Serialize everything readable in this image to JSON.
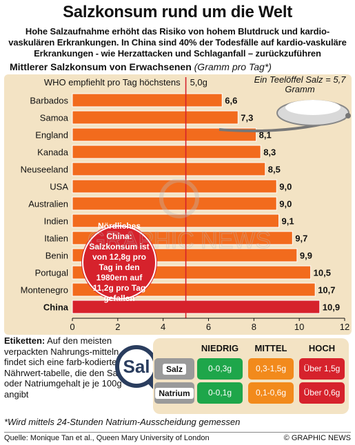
{
  "title": "Salzkonsum rund um die Welt",
  "subtitle": "Hohe Salzaufnahme erhöht das Risiko von hohem Blutdruck und kardio-vaskulären Erkrankungen. In China sind 40% der Todesfälle auf kardio-vaskuläre Erkrankungen - wie Herzattacken und Schlaganfall – zurückzuführen",
  "section_heading": "Mittlerer Salzkonsum von Erwachsenen",
  "section_unit": "(Gramm pro Tag*)",
  "spoon_note": "Ein Teelöffel Salz = 5,7 Gramm",
  "chart_data": {
    "type": "bar",
    "orientation": "horizontal",
    "categories": [
      "Barbados",
      "Samoa",
      "England",
      "Kanada",
      "Neuseeland",
      "USA",
      "Australien",
      "Indien",
      "Italien",
      "Benin",
      "Portugal",
      "Montenegro",
      "China"
    ],
    "values": [
      6.6,
      7.3,
      8.1,
      8.3,
      8.5,
      9.0,
      9.0,
      9.1,
      9.7,
      9.9,
      10.5,
      10.7,
      10.9
    ],
    "value_labels": [
      "6,6",
      "7,3",
      "8,1",
      "8,3",
      "8,5",
      "9,0",
      "9,0",
      "9,1",
      "9,7",
      "9,9",
      "10,5",
      "10,7",
      "10,9"
    ],
    "highlight": "China",
    "xlim": [
      0,
      12
    ],
    "xticks": [
      0,
      2,
      4,
      6,
      8,
      10,
      12
    ],
    "reference_line": {
      "value": 5.0,
      "label_left": "WHO empfiehlt pro Tag höchstens",
      "label_right": "5,0g"
    },
    "colors": {
      "bar": "#f26b1d",
      "highlight": "#d6222c",
      "ref_line": "#d6222c",
      "background": "#f3e3c4"
    }
  },
  "callout": "Nördliches China: Salzkonsum ist von 12,8g pro Tag in den 1980ern auf 11,2g pro Tag gefallen",
  "labels_section": {
    "lead": "Etiketten:",
    "text": "Auf den meisten verpackten Nahrungs-mitteln findet sich eine farb-kodierte Nährwert-tabelle, die den Salz- oder Natriumgehalt je je 100g angibt",
    "magnifier_text": "Sal"
  },
  "nutrition_table": {
    "headers": [
      {
        "label": "NIEDRIG",
        "color": "#1ea64a"
      },
      {
        "label": "MITTEL",
        "color": "#f28a1c"
      },
      {
        "label": "HOCH",
        "color": "#d6222c"
      }
    ],
    "rows": [
      {
        "label": "Salz",
        "values": [
          "0-0,3g",
          "0,3-1,5g",
          "Über 1,5g"
        ]
      },
      {
        "label": "Natrium",
        "values": [
          "0-0,1g",
          "0,1-0,6g",
          "Über 0,6g"
        ]
      }
    ]
  },
  "footnote": "*Wird mittels 24-Stunden Natrium-Ausscheidung gemessen",
  "source": "Quelle: Monique Tan et al., Queen Mary University of London",
  "credit": "© GRAPHIC NEWS",
  "watermark_text": "GRAPHIC NEWS"
}
